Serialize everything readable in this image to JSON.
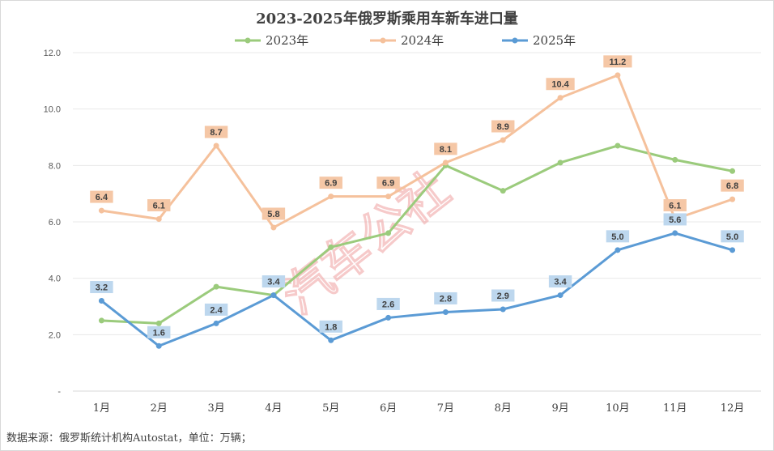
{
  "chart_data": {
    "type": "line",
    "title": "2023-2025年俄罗斯乘用车新车进口量",
    "categories": [
      "1月",
      "2月",
      "3月",
      "4月",
      "5月",
      "6月",
      "7月",
      "8月",
      "9月",
      "10月",
      "11月",
      "12月"
    ],
    "ylim": [
      0,
      12
    ],
    "yticks": [
      "-",
      "2.0",
      "4.0",
      "6.0",
      "8.0",
      "10.0",
      "12.0"
    ],
    "grid": true,
    "legend": "top",
    "series": [
      {
        "name": "2023年",
        "color": "#9bcb7c",
        "labelBg": "",
        "values": [
          2.5,
          2.4,
          3.7,
          3.4,
          5.1,
          5.6,
          8.0,
          7.1,
          8.1,
          8.7,
          8.2,
          7.8
        ],
        "labels": []
      },
      {
        "name": "2024年",
        "color": "#f5c19c",
        "labelBg": "#f5c7a6",
        "values": [
          6.4,
          6.1,
          8.7,
          5.8,
          6.9,
          6.9,
          8.1,
          8.9,
          10.4,
          11.2,
          6.1,
          6.8
        ],
        "labels": [
          "6.4",
          "6.1",
          "8.7",
          "5.8",
          "6.9",
          "6.9",
          "8.1",
          "8.9",
          "10.4",
          "11.2",
          "6.1",
          "6.8"
        ]
      },
      {
        "name": "2025年",
        "color": "#5b9bd5",
        "labelBg": "#bdd7ee",
        "values": [
          3.2,
          1.6,
          2.4,
          3.4,
          1.8,
          2.6,
          2.8,
          2.9,
          3.4,
          5.0,
          5.6,
          5.0
        ],
        "labels": [
          "3.2",
          "1.6",
          "2.4",
          "3.4",
          "1.8",
          "2.6",
          "2.8",
          "2.9",
          "3.4",
          "5.0",
          "5.6",
          "5.0"
        ]
      }
    ]
  },
  "source_note": "数据来源：俄罗斯统计机构Autostat，单位：万辆；",
  "watermark": "汽车公社"
}
